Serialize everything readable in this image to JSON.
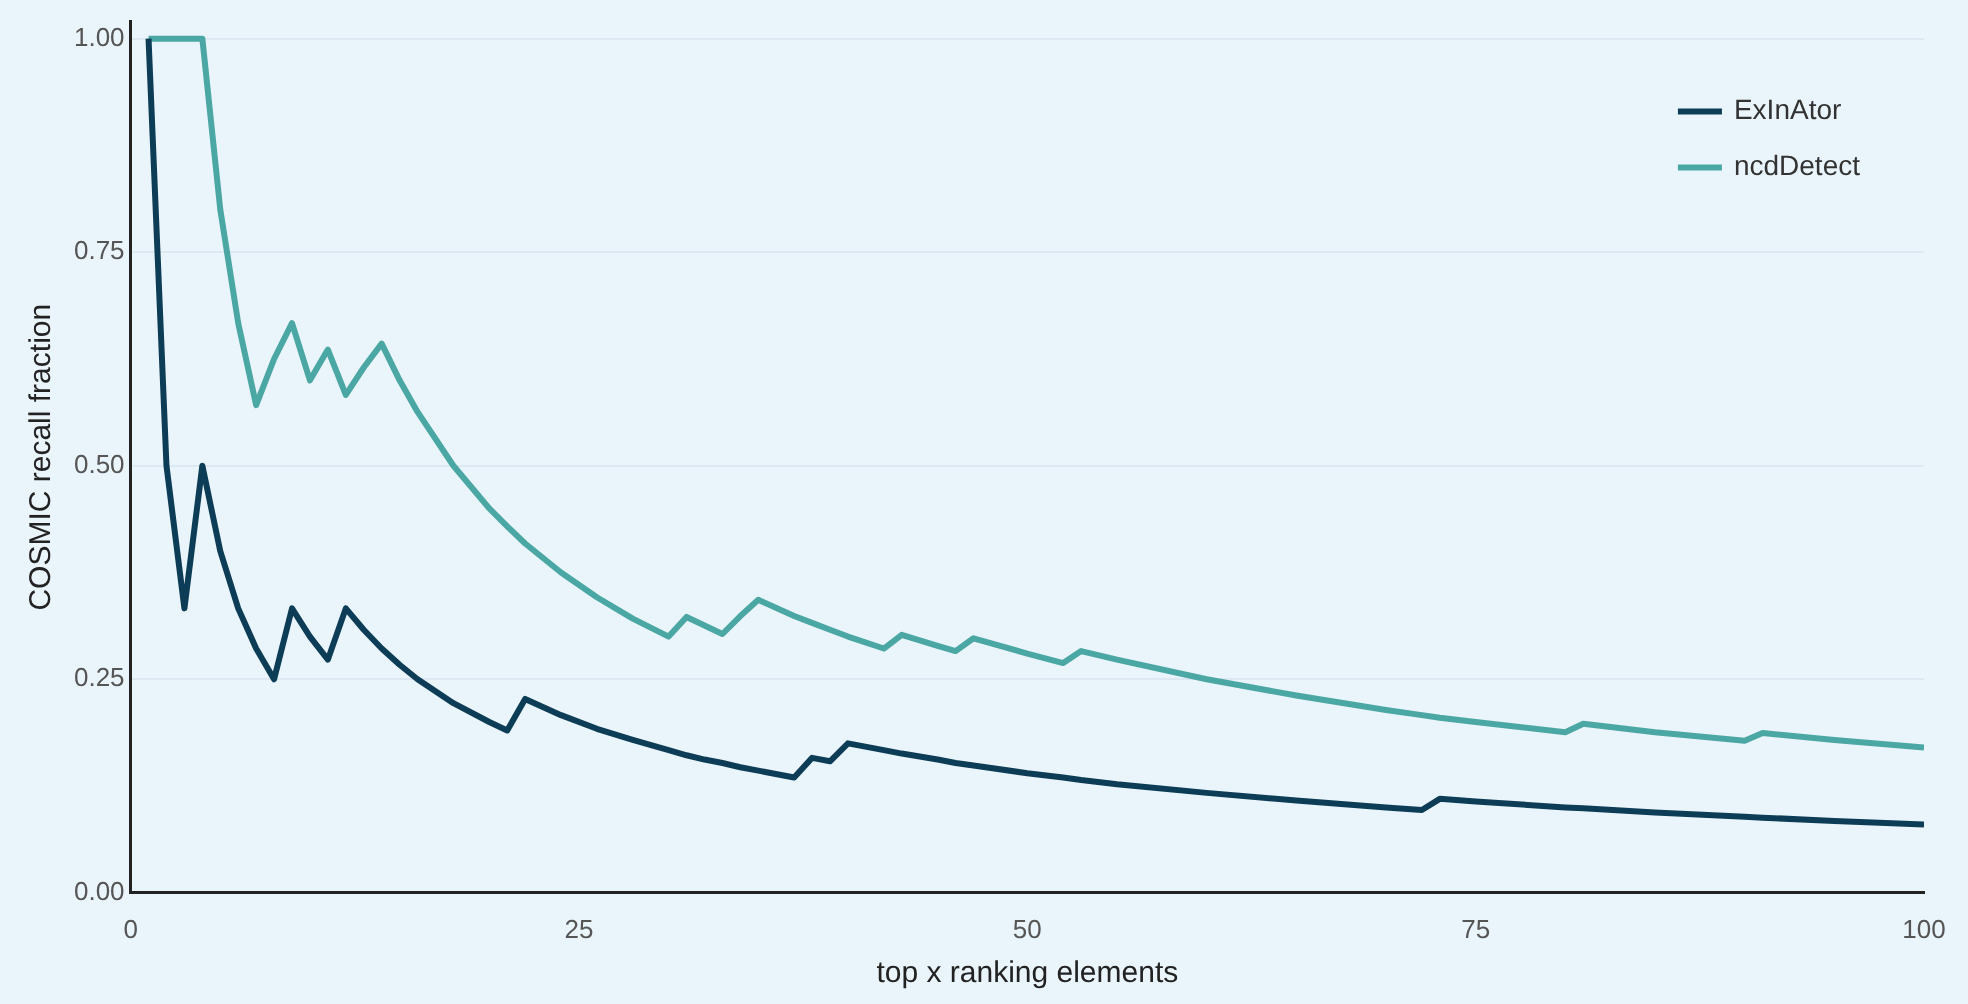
{
  "chart_data": {
    "type": "line",
    "xlabel": "top x ranking elements",
    "ylabel": "COSMIC recall fraction",
    "x": [
      1,
      2,
      3,
      4,
      5,
      6,
      7,
      8,
      9,
      10,
      11,
      12,
      13,
      14,
      15,
      16,
      18,
      20,
      21,
      22,
      24,
      26,
      28,
      30,
      31,
      32,
      33,
      34,
      35,
      37,
      38,
      39,
      40,
      42,
      43,
      45,
      46,
      47,
      50,
      52,
      53,
      55,
      60,
      65,
      70,
      72,
      73,
      75,
      80,
      81,
      85,
      90,
      91,
      95,
      100
    ],
    "series": [
      {
        "name": "ExInAtor",
        "color": "#0d3d56",
        "values": [
          1,
          0.5,
          0.333,
          0.5,
          0.4,
          0.333,
          0.286,
          0.25,
          0.333,
          0.3,
          0.273,
          0.333,
          0.308,
          0.286,
          0.267,
          0.25,
          0.222,
          0.2,
          0.19,
          0.227,
          0.208,
          0.192,
          0.179,
          0.167,
          0.161,
          0.156,
          0.152,
          0.147,
          0.143,
          0.135,
          0.158,
          0.154,
          0.175,
          0.167,
          0.163,
          0.156,
          0.152,
          0.149,
          0.14,
          0.135,
          0.132,
          0.127,
          0.117,
          0.108,
          0.1,
          0.097,
          0.11,
          0.107,
          0.1,
          0.099,
          0.094,
          0.089,
          0.088,
          0.084,
          0.08
        ]
      },
      {
        "name": "ncdDetect",
        "color": "#4ba7a3",
        "values": [
          1,
          1,
          1,
          1,
          0.8,
          0.667,
          0.571,
          0.625,
          0.667,
          0.6,
          0.636,
          0.583,
          0.615,
          0.643,
          0.6,
          0.563,
          0.5,
          0.45,
          0.429,
          0.409,
          0.375,
          0.346,
          0.321,
          0.3,
          0.323,
          0.313,
          0.303,
          0.324,
          0.343,
          0.324,
          0.316,
          0.308,
          0.3,
          0.286,
          0.302,
          0.289,
          0.283,
          0.298,
          0.28,
          0.269,
          0.283,
          0.273,
          0.25,
          0.231,
          0.214,
          0.208,
          0.205,
          0.2,
          0.188,
          0.198,
          0.188,
          0.178,
          0.187,
          0.179,
          0.17
        ]
      }
    ],
    "xlim": [
      0,
      100
    ],
    "xticks": [
      0,
      25,
      50,
      75,
      100
    ],
    "ylim": [
      0,
      1.02
    ],
    "yticks": [
      {
        "value": 0,
        "label": "0.00"
      },
      {
        "value": 0.25,
        "label": "0.25"
      },
      {
        "value": 0.5,
        "label": "0.50"
      },
      {
        "value": 0.75,
        "label": "0.75"
      },
      {
        "value": 1,
        "label": "1.00"
      }
    ],
    "grid": "y",
    "legend": "top right",
    "marker": "none",
    "line_style": "solid"
  }
}
